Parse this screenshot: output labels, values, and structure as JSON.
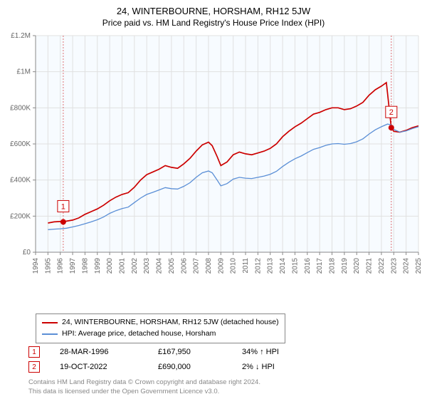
{
  "title": "24, WINTERBOURNE, HORSHAM, RH12 5JW",
  "subtitle": "Price paid vs. HM Land Registry's House Price Index (HPI)",
  "chart": {
    "type": "line",
    "background_color": "#ffffff",
    "plot_background_color": "#f7fbff",
    "grid_color": "#e0e0e0",
    "axis_color": "#888888",
    "x_axis": {
      "min": 1994,
      "max": 2025,
      "tick_step": 1,
      "ticks": [
        1994,
        1995,
        1996,
        1997,
        1998,
        1999,
        2000,
        2001,
        2002,
        2003,
        2004,
        2005,
        2006,
        2007,
        2008,
        2009,
        2010,
        2011,
        2012,
        2013,
        2014,
        2015,
        2016,
        2017,
        2018,
        2019,
        2020,
        2021,
        2022,
        2023,
        2024,
        2025
      ],
      "label_fontsize": 10,
      "label_rotation": -90,
      "label_color": "#666666"
    },
    "y_axis": {
      "min": 0,
      "max": 1200000,
      "tick_step": 200000,
      "ticks": [
        0,
        200000,
        400000,
        600000,
        800000,
        1000000,
        1200000
      ],
      "tick_labels": [
        "£0",
        "£200K",
        "£400K",
        "£600K",
        "£800K",
        "£1M",
        "£1.2M"
      ],
      "label_fontsize": 10,
      "label_color": "#666666"
    },
    "series": [
      {
        "name": "24, WINTERBOURNE, HORSHAM, RH12 5JW (detached house)",
        "color": "#cc0000",
        "line_width": 1.7,
        "data": [
          [
            1995.0,
            162000
          ],
          [
            1995.5,
            168000
          ],
          [
            1996.0,
            170000
          ],
          [
            1996.5,
            172000
          ],
          [
            1997.0,
            178000
          ],
          [
            1997.5,
            190000
          ],
          [
            1998.0,
            210000
          ],
          [
            1998.5,
            225000
          ],
          [
            1999.0,
            240000
          ],
          [
            1999.5,
            260000
          ],
          [
            2000.0,
            285000
          ],
          [
            2000.5,
            305000
          ],
          [
            2001.0,
            320000
          ],
          [
            2001.5,
            330000
          ],
          [
            2002.0,
            360000
          ],
          [
            2002.5,
            400000
          ],
          [
            2003.0,
            430000
          ],
          [
            2003.5,
            445000
          ],
          [
            2004.0,
            460000
          ],
          [
            2004.5,
            480000
          ],
          [
            2005.0,
            470000
          ],
          [
            2005.5,
            465000
          ],
          [
            2006.0,
            490000
          ],
          [
            2006.5,
            520000
          ],
          [
            2007.0,
            560000
          ],
          [
            2007.5,
            595000
          ],
          [
            2008.0,
            610000
          ],
          [
            2008.3,
            590000
          ],
          [
            2008.7,
            530000
          ],
          [
            2009.0,
            480000
          ],
          [
            2009.5,
            500000
          ],
          [
            2010.0,
            540000
          ],
          [
            2010.5,
            555000
          ],
          [
            2011.0,
            545000
          ],
          [
            2011.5,
            540000
          ],
          [
            2012.0,
            550000
          ],
          [
            2012.5,
            560000
          ],
          [
            2013.0,
            575000
          ],
          [
            2013.5,
            600000
          ],
          [
            2014.0,
            640000
          ],
          [
            2014.5,
            670000
          ],
          [
            2015.0,
            695000
          ],
          [
            2015.5,
            715000
          ],
          [
            2016.0,
            740000
          ],
          [
            2016.5,
            765000
          ],
          [
            2017.0,
            775000
          ],
          [
            2017.5,
            790000
          ],
          [
            2018.0,
            800000
          ],
          [
            2018.5,
            800000
          ],
          [
            2019.0,
            790000
          ],
          [
            2019.5,
            795000
          ],
          [
            2020.0,
            810000
          ],
          [
            2020.5,
            830000
          ],
          [
            2021.0,
            870000
          ],
          [
            2021.5,
            900000
          ],
          [
            2022.0,
            920000
          ],
          [
            2022.4,
            940000
          ],
          [
            2022.8,
            690000
          ],
          [
            2023.0,
            670000
          ],
          [
            2023.5,
            665000
          ],
          [
            2024.0,
            675000
          ],
          [
            2024.5,
            690000
          ],
          [
            2025.0,
            700000
          ]
        ]
      },
      {
        "name": "HPI: Average price, detached house, Horsham",
        "color": "#5b8fd6",
        "line_width": 1.3,
        "data": [
          [
            1995.0,
            125000
          ],
          [
            1995.5,
            128000
          ],
          [
            1996.0,
            130000
          ],
          [
            1996.5,
            133000
          ],
          [
            1997.0,
            140000
          ],
          [
            1997.5,
            148000
          ],
          [
            1998.0,
            158000
          ],
          [
            1998.5,
            168000
          ],
          [
            1999.0,
            180000
          ],
          [
            1999.5,
            195000
          ],
          [
            2000.0,
            215000
          ],
          [
            2000.5,
            230000
          ],
          [
            2001.0,
            242000
          ],
          [
            2001.5,
            250000
          ],
          [
            2002.0,
            275000
          ],
          [
            2002.5,
            300000
          ],
          [
            2003.0,
            320000
          ],
          [
            2003.5,
            332000
          ],
          [
            2004.0,
            345000
          ],
          [
            2004.5,
            358000
          ],
          [
            2005.0,
            352000
          ],
          [
            2005.5,
            350000
          ],
          [
            2006.0,
            365000
          ],
          [
            2006.5,
            385000
          ],
          [
            2007.0,
            415000
          ],
          [
            2007.5,
            440000
          ],
          [
            2008.0,
            450000
          ],
          [
            2008.3,
            440000
          ],
          [
            2008.7,
            400000
          ],
          [
            2009.0,
            368000
          ],
          [
            2009.5,
            380000
          ],
          [
            2010.0,
            405000
          ],
          [
            2010.5,
            415000
          ],
          [
            2011.0,
            410000
          ],
          [
            2011.5,
            408000
          ],
          [
            2012.0,
            415000
          ],
          [
            2012.5,
            422000
          ],
          [
            2013.0,
            432000
          ],
          [
            2013.5,
            448000
          ],
          [
            2014.0,
            475000
          ],
          [
            2014.5,
            498000
          ],
          [
            2015.0,
            518000
          ],
          [
            2015.5,
            533000
          ],
          [
            2016.0,
            552000
          ],
          [
            2016.5,
            570000
          ],
          [
            2017.0,
            580000
          ],
          [
            2017.5,
            592000
          ],
          [
            2018.0,
            600000
          ],
          [
            2018.5,
            602000
          ],
          [
            2019.0,
            598000
          ],
          [
            2019.5,
            602000
          ],
          [
            2020.0,
            612000
          ],
          [
            2020.5,
            628000
          ],
          [
            2021.0,
            655000
          ],
          [
            2021.5,
            678000
          ],
          [
            2022.0,
            695000
          ],
          [
            2022.5,
            710000
          ],
          [
            2022.8,
            705000
          ],
          [
            2023.0,
            680000
          ],
          [
            2023.5,
            665000
          ],
          [
            2024.0,
            672000
          ],
          [
            2024.5,
            685000
          ],
          [
            2025.0,
            695000
          ]
        ]
      }
    ],
    "markers": [
      {
        "id": "1",
        "x": 1996.24,
        "y": 167950,
        "color": "#cc0000",
        "label_offset_y": -30
      },
      {
        "id": "2",
        "x": 2022.8,
        "y": 690000,
        "color": "#cc0000",
        "label_offset_y": -30
      }
    ]
  },
  "legend": {
    "items": [
      {
        "label": "24, WINTERBOURNE, HORSHAM, RH12 5JW (detached house)",
        "color": "#cc0000"
      },
      {
        "label": "HPI: Average price, detached house, Horsham",
        "color": "#5b8fd6"
      }
    ]
  },
  "events": [
    {
      "id": "1",
      "date": "28-MAR-1996",
      "price": "£167,950",
      "delta": "34% ↑ HPI"
    },
    {
      "id": "2",
      "date": "19-OCT-2022",
      "price": "£690,000",
      "delta": "2% ↓ HPI"
    }
  ],
  "footer": {
    "line1": "Contains HM Land Registry data © Crown copyright and database right 2024.",
    "line2": "This data is licensed under the Open Government Licence v3.0."
  }
}
